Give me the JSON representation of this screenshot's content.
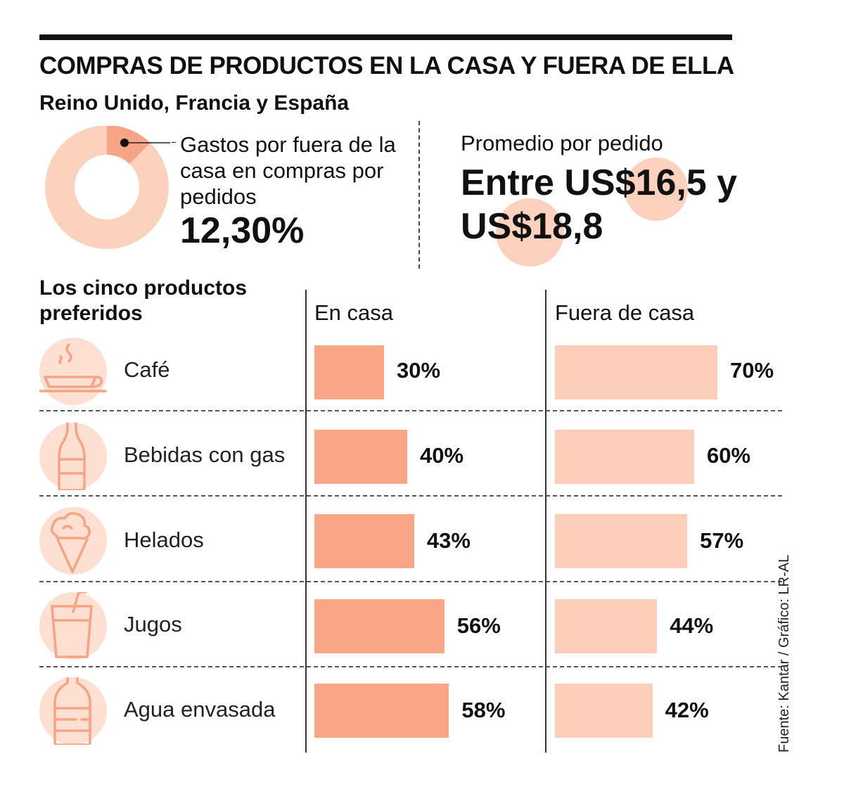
{
  "title": "COMPRAS DE PRODUCTOS EN LA CASA Y FUERA DE ELLA",
  "subtitle": "Reino Unido, Francia y España",
  "gastos": {
    "label": "Gastos por fuera de la casa en compras por pedidos",
    "value": "12,30%",
    "share": 12.3
  },
  "promedio": {
    "label": "Promedio por pedido",
    "value": "Entre US$16,5 y US$18,8"
  },
  "section_title": "Los cinco productos preferidos",
  "colors": {
    "home": "#f8a687",
    "away": "#fdcfba",
    "icon": "#f6a386",
    "icon_bg": "#fde0d2"
  },
  "chart_data": {
    "type": "bar",
    "title": "Los cinco productos preferidos",
    "categories": [
      "Café",
      "Bebidas con gas",
      "Helados",
      "Jugos",
      "Agua envasada"
    ],
    "series": [
      {
        "name": "En casa",
        "values": [
          30,
          40,
          43,
          56,
          58
        ],
        "labels": [
          "30%",
          "40%",
          "43%",
          "56%",
          "58%"
        ]
      },
      {
        "name": "Fuera de casa",
        "values": [
          70,
          60,
          57,
          44,
          42
        ],
        "labels": [
          "70%",
          "60%",
          "57%",
          "44%",
          "42%"
        ]
      }
    ],
    "unit": "%",
    "ylim": [
      0,
      100
    ]
  },
  "icons": [
    "coffee-cup-icon",
    "soda-bottle-icon",
    "ice-cream-icon",
    "juice-glass-icon",
    "water-bottle-icon"
  ],
  "source": "Fuente: Kantar / Gráfico: LR-AL"
}
